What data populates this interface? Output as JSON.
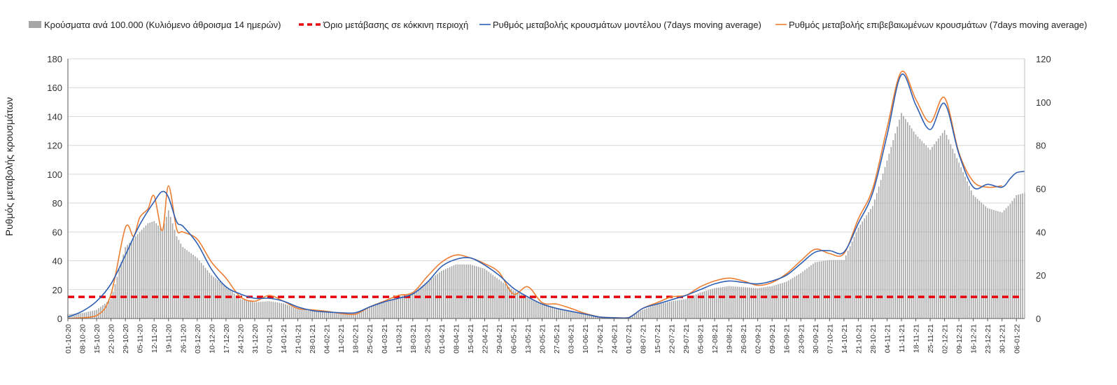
{
  "chart_data": {
    "type": "bar+line",
    "legend": {
      "position": "top",
      "entries": [
        {
          "key": "bars",
          "label": "Κρούσματα ανά 100.000 (Κυλιόμενο άθροισμα 14 ημερών)",
          "symbol": "bar"
        },
        {
          "key": "threshold",
          "label": "Όριο μετάβασης σε κόκκινη περιοχή",
          "symbol": "dashed-line"
        },
        {
          "key": "model",
          "label": "Ρυθμός μεταβολής κρουσμάτων μοντέλου (7days moving average)",
          "symbol": "line"
        },
        {
          "key": "confirmed",
          "label": "Ρυθμός μεταβολής επιβεβαιωμένων κρουσμάτων (7days moving average)",
          "symbol": "line"
        }
      ]
    },
    "ylabel": "Ρυθμός μεταβολής κρουσμάτων",
    "y_left": {
      "min": 0,
      "max": 180,
      "ticks": [
        "0",
        "20",
        "40",
        "60",
        "80",
        "100",
        "120",
        "140",
        "160",
        "180"
      ]
    },
    "y_right": {
      "min": 0,
      "max": 120,
      "ticks": [
        "0",
        "20",
        "40",
        "60",
        "80",
        "100",
        "120"
      ]
    },
    "grid": true,
    "start_date": "2020-10-01",
    "end_date": "2022-01-10",
    "x_tick_labels": [
      "01-10-20",
      "08-10-20",
      "15-10-20",
      "22-10-20",
      "29-10-20",
      "05-11-20",
      "12-11-20",
      "19-11-20",
      "26-11-20",
      "03-12-20",
      "10-12-20",
      "17-12-20",
      "24-12-20",
      "31-12-20",
      "07-01-21",
      "14-01-21",
      "21-01-21",
      "28-01-21",
      "04-02-21",
      "11-02-21",
      "18-02-21",
      "25-02-21",
      "04-03-21",
      "11-03-21",
      "18-03-21",
      "25-03-21",
      "01-04-21",
      "08-04-21",
      "15-04-21",
      "22-04-21",
      "29-04-21",
      "06-05-21",
      "13-05-21",
      "20-05-21",
      "27-05-21",
      "03-06-21",
      "10-06-21",
      "17-06-21",
      "24-06-21",
      "01-07-21",
      "08-07-21",
      "15-07-21",
      "22-07-21",
      "29-07-21",
      "05-08-21",
      "12-08-21",
      "19-08-21",
      "26-08-21",
      "02-09-21",
      "09-09-21",
      "16-09-21",
      "23-09-21",
      "30-09-21",
      "07-10-21",
      "14-10-21",
      "21-10-21",
      "28-10-21",
      "04-11-21",
      "11-11-21",
      "18-11-21",
      "25-11-21",
      "02-12-21",
      "09-12-21",
      "16-12-21",
      "23-12-21",
      "30-12-21",
      "06-01-22"
    ],
    "threshold": {
      "value": 10,
      "axis": "right",
      "color": "#e8000b"
    },
    "series": [
      {
        "key": "bars",
        "axis": "right",
        "color": "#a6a6a6",
        "type": "bar",
        "points": [
          [
            "01-10-20",
            2
          ],
          [
            "08-10-20",
            2.5
          ],
          [
            "15-10-20",
            4
          ],
          [
            "22-10-20",
            9
          ],
          [
            "29-10-20",
            33
          ],
          [
            "05-11-20",
            40
          ],
          [
            "09-11-20",
            44
          ],
          [
            "12-11-20",
            45
          ],
          [
            "16-11-20",
            41
          ],
          [
            "19-11-20",
            50
          ],
          [
            "23-11-20",
            38
          ],
          [
            "26-11-20",
            33
          ],
          [
            "03-12-20",
            28
          ],
          [
            "10-12-20",
            20
          ],
          [
            "17-12-20",
            15
          ],
          [
            "24-12-20",
            9
          ],
          [
            "31-12-20",
            7.5
          ],
          [
            "07-01-21",
            8
          ],
          [
            "14-01-21",
            7
          ],
          [
            "21-01-21",
            4.5
          ],
          [
            "28-01-21",
            3.5
          ],
          [
            "04-02-21",
            3
          ],
          [
            "11-02-21",
            2.5
          ],
          [
            "18-02-21",
            2.5
          ],
          [
            "25-02-21",
            5
          ],
          [
            "04-03-21",
            8
          ],
          [
            "11-03-21",
            10
          ],
          [
            "18-03-21",
            12
          ],
          [
            "25-03-21",
            17
          ],
          [
            "01-04-21",
            22
          ],
          [
            "08-04-21",
            25
          ],
          [
            "15-04-21",
            25
          ],
          [
            "22-04-21",
            23
          ],
          [
            "29-04-21",
            18
          ],
          [
            "06-05-21",
            13
          ],
          [
            "13-05-21",
            10
          ],
          [
            "20-05-21",
            7
          ],
          [
            "27-05-21",
            5
          ],
          [
            "03-06-21",
            3.5
          ],
          [
            "10-06-21",
            2.5
          ],
          [
            "17-06-21",
            1
          ],
          [
            "24-06-21",
            0.6
          ],
          [
            "01-07-21",
            0.6
          ],
          [
            "08-07-21",
            4
          ],
          [
            "15-07-21",
            6.5
          ],
          [
            "22-07-21",
            8
          ],
          [
            "29-07-21",
            9
          ],
          [
            "05-08-21",
            12
          ],
          [
            "12-08-21",
            14
          ],
          [
            "19-08-21",
            15
          ],
          [
            "26-08-21",
            14.5
          ],
          [
            "02-09-21",
            14
          ],
          [
            "09-09-21",
            15
          ],
          [
            "16-09-21",
            17
          ],
          [
            "23-09-21",
            21
          ],
          [
            "30-09-21",
            26
          ],
          [
            "07-10-21",
            27
          ],
          [
            "14-10-21",
            27
          ],
          [
            "21-10-21",
            42
          ],
          [
            "28-10-21",
            52
          ],
          [
            "04-11-21",
            73
          ],
          [
            "11-11-21",
            95
          ],
          [
            "18-11-21",
            85
          ],
          [
            "25-11-21",
            78
          ],
          [
            "02-12-21",
            87
          ],
          [
            "09-12-21",
            72
          ],
          [
            "16-12-21",
            57
          ],
          [
            "23-12-21",
            51
          ],
          [
            "30-12-21",
            49
          ],
          [
            "03-01-22",
            53
          ],
          [
            "06-01-22",
            57
          ],
          [
            "10-01-22",
            58
          ]
        ]
      },
      {
        "key": "model",
        "axis": "left",
        "color": "#2e5fb4",
        "type": "line",
        "points": [
          [
            "01-10-20",
            1
          ],
          [
            "08-10-20",
            5
          ],
          [
            "15-10-20",
            12
          ],
          [
            "22-10-20",
            24
          ],
          [
            "29-10-20",
            44
          ],
          [
            "05-11-20",
            65
          ],
          [
            "12-11-20",
            81
          ],
          [
            "16-11-20",
            88
          ],
          [
            "19-11-20",
            84
          ],
          [
            "23-11-20",
            67
          ],
          [
            "26-11-20",
            64
          ],
          [
            "03-12-20",
            52
          ],
          [
            "10-12-20",
            34
          ],
          [
            "17-12-20",
            22
          ],
          [
            "24-12-20",
            17
          ],
          [
            "31-12-20",
            14
          ],
          [
            "07-01-21",
            14
          ],
          [
            "14-01-21",
            12
          ],
          [
            "21-01-21",
            8
          ],
          [
            "28-01-21",
            5.5
          ],
          [
            "04-02-21",
            4.5
          ],
          [
            "11-02-21",
            4
          ],
          [
            "18-02-21",
            4
          ],
          [
            "25-02-21",
            8
          ],
          [
            "04-03-21",
            11.5
          ],
          [
            "11-03-21",
            14
          ],
          [
            "18-03-21",
            17
          ],
          [
            "25-03-21",
            25
          ],
          [
            "01-04-21",
            36
          ],
          [
            "08-04-21",
            41
          ],
          [
            "15-04-21",
            42
          ],
          [
            "22-04-21",
            37
          ],
          [
            "29-04-21",
            30
          ],
          [
            "06-05-21",
            21
          ],
          [
            "13-05-21",
            15
          ],
          [
            "20-05-21",
            10
          ],
          [
            "27-05-21",
            7
          ],
          [
            "03-06-21",
            5
          ],
          [
            "10-06-21",
            3
          ],
          [
            "17-06-21",
            1
          ],
          [
            "24-06-21",
            0.5
          ],
          [
            "01-07-21",
            0.5
          ],
          [
            "08-07-21",
            7
          ],
          [
            "15-07-21",
            10
          ],
          [
            "22-07-21",
            13
          ],
          [
            "29-07-21",
            16
          ],
          [
            "05-08-21",
            20
          ],
          [
            "12-08-21",
            24
          ],
          [
            "19-08-21",
            26
          ],
          [
            "26-08-21",
            25
          ],
          [
            "02-09-21",
            24
          ],
          [
            "09-09-21",
            26
          ],
          [
            "16-09-21",
            30
          ],
          [
            "23-09-21",
            38
          ],
          [
            "30-09-21",
            46
          ],
          [
            "07-10-21",
            47
          ],
          [
            "14-10-21",
            46
          ],
          [
            "21-10-21",
            66
          ],
          [
            "28-10-21",
            87
          ],
          [
            "04-11-21",
            127
          ],
          [
            "11-11-21",
            169
          ],
          [
            "18-11-21",
            148
          ],
          [
            "25-11-21",
            131
          ],
          [
            "02-12-21",
            149
          ],
          [
            "09-12-21",
            114
          ],
          [
            "16-12-21",
            91
          ],
          [
            "23-12-21",
            93
          ],
          [
            "30-12-21",
            91
          ],
          [
            "03-01-22",
            97
          ],
          [
            "06-01-22",
            101
          ],
          [
            "10-01-22",
            102
          ]
        ]
      },
      {
        "key": "confirmed",
        "axis": "left",
        "color": "#ed7d31",
        "type": "line",
        "points": [
          [
            "01-10-20",
            0
          ],
          [
            "15-10-20",
            2
          ],
          [
            "22-10-20",
            17
          ],
          [
            "29-10-20",
            63
          ],
          [
            "02-11-20",
            57
          ],
          [
            "05-11-20",
            70
          ],
          [
            "09-11-20",
            76
          ],
          [
            "12-11-20",
            85
          ],
          [
            "16-11-20",
            61
          ],
          [
            "19-11-20",
            92
          ],
          [
            "23-11-20",
            62
          ],
          [
            "26-11-20",
            60
          ],
          [
            "03-12-20",
            55
          ],
          [
            "10-12-20",
            39
          ],
          [
            "17-12-20",
            28
          ],
          [
            "24-12-20",
            15
          ],
          [
            "31-12-20",
            12
          ],
          [
            "07-01-21",
            16
          ],
          [
            "14-01-21",
            12
          ],
          [
            "21-01-21",
            7
          ],
          [
            "28-01-21",
            6
          ],
          [
            "04-02-21",
            5
          ],
          [
            "11-02-21",
            3.5
          ],
          [
            "18-02-21",
            3
          ],
          [
            "25-02-21",
            8
          ],
          [
            "04-03-21",
            12
          ],
          [
            "11-03-21",
            16
          ],
          [
            "18-03-21",
            18
          ],
          [
            "25-03-21",
            29
          ],
          [
            "01-04-21",
            39
          ],
          [
            "08-04-21",
            44
          ],
          [
            "15-04-21",
            42
          ],
          [
            "22-04-21",
            38
          ],
          [
            "29-04-21",
            32
          ],
          [
            "06-05-21",
            17
          ],
          [
            "13-05-21",
            22
          ],
          [
            "20-05-21",
            11
          ],
          [
            "27-05-21",
            10
          ],
          [
            "03-06-21",
            7
          ],
          [
            "10-06-21",
            3.5
          ],
          [
            "17-06-21",
            1
          ],
          [
            "24-06-21",
            0.6
          ],
          [
            "01-07-21",
            0.6
          ],
          [
            "08-07-21",
            7
          ],
          [
            "15-07-21",
            11
          ],
          [
            "22-07-21",
            15
          ],
          [
            "29-07-21",
            16
          ],
          [
            "05-08-21",
            22
          ],
          [
            "12-08-21",
            26
          ],
          [
            "19-08-21",
            28
          ],
          [
            "26-08-21",
            26
          ],
          [
            "02-09-21",
            23
          ],
          [
            "09-09-21",
            25
          ],
          [
            "16-09-21",
            31
          ],
          [
            "23-09-21",
            40
          ],
          [
            "30-09-21",
            48
          ],
          [
            "07-10-21",
            45
          ],
          [
            "14-10-21",
            45
          ],
          [
            "21-10-21",
            69
          ],
          [
            "28-10-21",
            90
          ],
          [
            "04-11-21",
            132
          ],
          [
            "11-11-21",
            171
          ],
          [
            "18-11-21",
            152
          ],
          [
            "25-11-21",
            136
          ],
          [
            "02-12-21",
            153
          ],
          [
            "09-12-21",
            115
          ],
          [
            "16-12-21",
            95
          ],
          [
            "23-12-21",
            91
          ],
          [
            "30-12-21",
            92
          ]
        ]
      }
    ]
  }
}
